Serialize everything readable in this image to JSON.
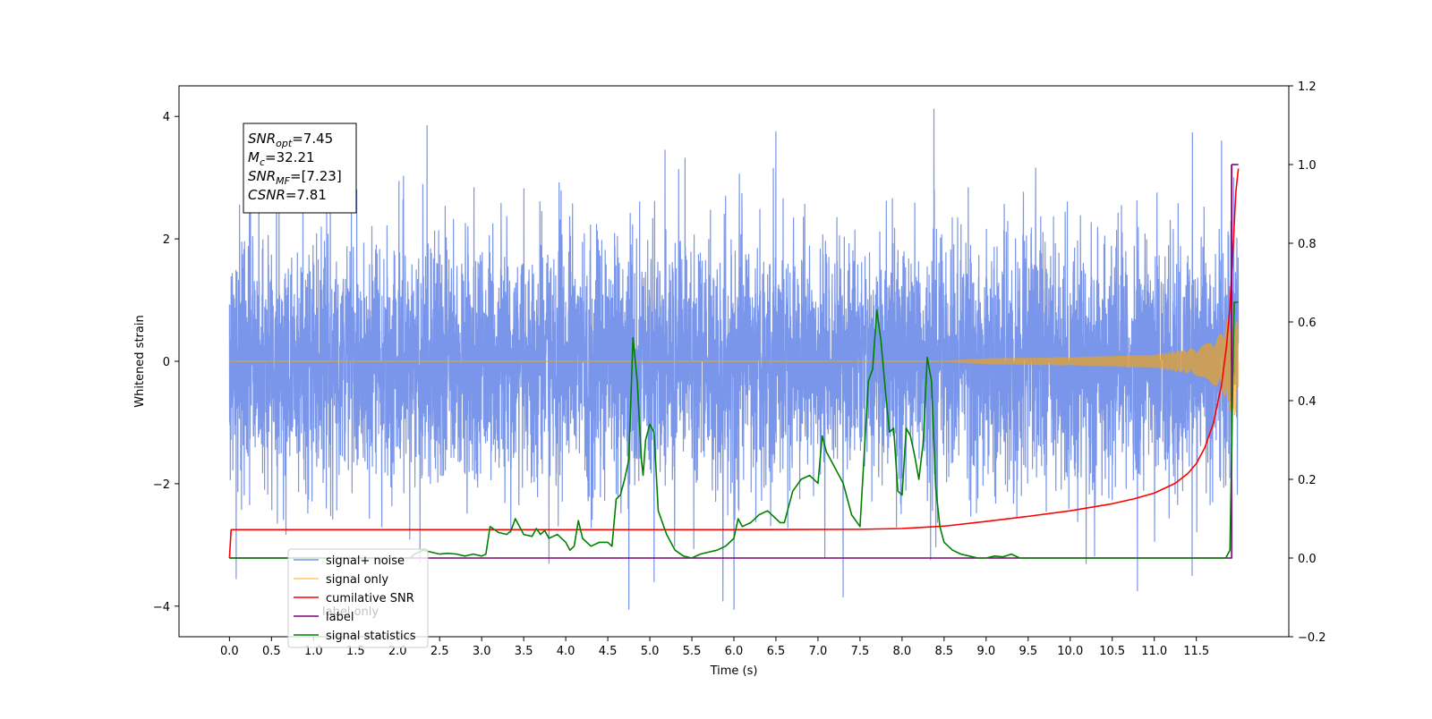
{
  "chart_data": {
    "type": "line",
    "title": "",
    "xlabel": "Time (s)",
    "ylabel": "Whitened strain",
    "y2label": "",
    "xlim": [
      -0.6,
      12.6
    ],
    "ylim": [
      -4.5,
      4.5
    ],
    "y2lim": [
      -0.2,
      1.2
    ],
    "x_ticks": [
      0.0,
      0.5,
      1.0,
      1.5,
      2.0,
      2.5,
      3.0,
      3.5,
      4.0,
      4.5,
      5.0,
      5.5,
      6.0,
      6.5,
      7.0,
      7.5,
      8.0,
      8.5,
      9.0,
      9.5,
      10.0,
      10.5,
      11.0,
      11.5
    ],
    "x_tick_labels": [
      "0.0",
      "0.5",
      "1.0",
      "1.5",
      "2.0",
      "2.5",
      "3.0",
      "3.5",
      "4.0",
      "4.5",
      "5.0",
      "5.5",
      "6.0",
      "6.5",
      "7.0",
      "7.5",
      "8.0",
      "8.5",
      "9.0",
      "9.5",
      "10.0",
      "10.5",
      "11.0",
      "11.5"
    ],
    "y_ticks": [
      -4,
      -2,
      0,
      2,
      4
    ],
    "y_tick_labels": [
      "−4",
      "−2",
      "0",
      "2",
      "4"
    ],
    "y2_ticks": [
      -0.2,
      0.0,
      0.2,
      0.4,
      0.6,
      0.8,
      1.0,
      1.2
    ],
    "y2_tick_labels": [
      "−0.2",
      "0.0",
      "0.2",
      "0.4",
      "0.6",
      "0.8",
      "1.0",
      "1.2"
    ],
    "grid": false,
    "legend_position": "bottom-left",
    "annotation": {
      "lines": [
        {
          "base": "SNR",
          "sub": "opt",
          "value": "=7.45"
        },
        {
          "base": "M",
          "sub": "c",
          "value": "=32.21"
        },
        {
          "base": "SNR",
          "sub": "MF",
          "value": "=[7.23]"
        },
        {
          "base": "CSNR",
          "sub": "",
          "value": "=7.81"
        }
      ]
    },
    "series": [
      {
        "name": "signal+ noise",
        "axis": "left",
        "color": "#4169e1",
        "opacity": 0.7,
        "x_start": 0.0,
        "x_end": 12.0,
        "amplitude_range": [
          -4.05,
          4.12
        ],
        "typical_std": 1.0,
        "spikes": [
          [
            0.02,
            1.38
          ],
          [
            0.08,
            -3.55
          ],
          [
            0.12,
            2.55
          ],
          [
            0.25,
            3.27
          ],
          [
            0.35,
            3.55
          ],
          [
            1.2,
            3.3
          ],
          [
            2.35,
            3.85
          ],
          [
            3.8,
            -3.3
          ],
          [
            4.75,
            -4.05
          ],
          [
            5.05,
            -3.6
          ],
          [
            5.18,
            3.45
          ],
          [
            6.5,
            3.75
          ],
          [
            7.3,
            -3.85
          ],
          [
            8.38,
            4.12
          ],
          [
            10.8,
            -3.75
          ],
          [
            11.45,
            -3.5
          ],
          [
            11.8,
            3.6
          ]
        ]
      },
      {
        "name": "signal only",
        "axis": "left",
        "color": "#ffa500",
        "opacity": 0.6,
        "x_start": 0.0,
        "x_end": 12.0,
        "envelope": [
          [
            0.0,
            0.0
          ],
          [
            8.5,
            0.0
          ],
          [
            9.0,
            0.04
          ],
          [
            10.0,
            0.06
          ],
          [
            11.0,
            0.1
          ],
          [
            11.5,
            0.22
          ],
          [
            11.8,
            0.45
          ],
          [
            11.95,
            0.95
          ],
          [
            12.0,
            0.5
          ]
        ]
      },
      {
        "name": "cumilative SNR",
        "axis": "right",
        "color": "#ff0000",
        "opacity": 1.0,
        "points": [
          [
            0.0,
            0.0
          ],
          [
            0.02,
            0.072
          ],
          [
            1.0,
            0.072
          ],
          [
            4.0,
            0.072
          ],
          [
            6.0,
            0.072
          ],
          [
            7.5,
            0.073
          ],
          [
            8.0,
            0.075
          ],
          [
            8.5,
            0.081
          ],
          [
            9.0,
            0.093
          ],
          [
            9.5,
            0.106
          ],
          [
            10.0,
            0.12
          ],
          [
            10.5,
            0.138
          ],
          [
            10.75,
            0.15
          ],
          [
            11.0,
            0.165
          ],
          [
            11.25,
            0.19
          ],
          [
            11.4,
            0.215
          ],
          [
            11.5,
            0.24
          ],
          [
            11.6,
            0.28
          ],
          [
            11.7,
            0.34
          ],
          [
            11.8,
            0.44
          ],
          [
            11.86,
            0.54
          ],
          [
            11.9,
            0.64
          ],
          [
            11.94,
            0.8
          ],
          [
            11.97,
            0.93
          ],
          [
            12.0,
            0.99
          ]
        ]
      },
      {
        "name": "cumilative SNR",
        "axis": "right",
        "color": "#ff0000",
        "opacity": 1.0,
        "points": [
          [
            11.92,
            1.0
          ],
          [
            11.92,
            0.5
          ]
        ]
      },
      {
        "name": "label",
        "axis": "right",
        "color": "#800080",
        "opacity": 1.0,
        "points": [
          [
            0.0,
            0.0
          ],
          [
            11.92,
            0.0
          ],
          [
            11.92,
            1.0
          ]
        ]
      },
      {
        "name": "label",
        "axis": "right",
        "color": "#800080",
        "opacity": 1.0,
        "points": [
          [
            11.92,
            1.0
          ],
          [
            12.0,
            1.0
          ]
        ]
      },
      {
        "name": "signal statistics",
        "axis": "right",
        "color": "#008000",
        "opacity": 1.0,
        "points": [
          [
            0.0,
            0.0
          ],
          [
            2.15,
            0.0
          ],
          [
            2.2,
            0.01
          ],
          [
            2.3,
            0.02
          ],
          [
            2.4,
            0.015
          ],
          [
            2.5,
            0.01
          ],
          [
            2.6,
            0.012
          ],
          [
            2.7,
            0.01
          ],
          [
            2.8,
            0.005
          ],
          [
            2.9,
            0.01
          ],
          [
            3.0,
            0.005
          ],
          [
            3.05,
            0.01
          ],
          [
            3.1,
            0.08
          ],
          [
            3.2,
            0.065
          ],
          [
            3.3,
            0.06
          ],
          [
            3.35,
            0.07
          ],
          [
            3.4,
            0.1
          ],
          [
            3.5,
            0.06
          ],
          [
            3.6,
            0.055
          ],
          [
            3.65,
            0.075
          ],
          [
            3.7,
            0.06
          ],
          [
            3.75,
            0.07
          ],
          [
            3.8,
            0.05
          ],
          [
            3.85,
            0.055
          ],
          [
            3.9,
            0.06
          ],
          [
            4.0,
            0.04
          ],
          [
            4.05,
            0.02
          ],
          [
            4.1,
            0.03
          ],
          [
            4.15,
            0.095
          ],
          [
            4.2,
            0.05
          ],
          [
            4.3,
            0.03
          ],
          [
            4.4,
            0.04
          ],
          [
            4.5,
            0.04
          ],
          [
            4.55,
            0.03
          ],
          [
            4.6,
            0.15
          ],
          [
            4.65,
            0.16
          ],
          [
            4.7,
            0.2
          ],
          [
            4.75,
            0.25
          ],
          [
            4.8,
            0.56
          ],
          [
            4.85,
            0.45
          ],
          [
            4.9,
            0.25
          ],
          [
            4.92,
            0.21
          ],
          [
            4.95,
            0.3
          ],
          [
            5.0,
            0.34
          ],
          [
            5.05,
            0.32
          ],
          [
            5.1,
            0.12
          ],
          [
            5.2,
            0.06
          ],
          [
            5.3,
            0.02
          ],
          [
            5.4,
            0.005
          ],
          [
            5.5,
            0.0
          ],
          [
            5.6,
            0.01
          ],
          [
            5.7,
            0.015
          ],
          [
            5.8,
            0.02
          ],
          [
            5.9,
            0.03
          ],
          [
            6.0,
            0.05
          ],
          [
            6.05,
            0.1
          ],
          [
            6.1,
            0.08
          ],
          [
            6.2,
            0.09
          ],
          [
            6.3,
            0.11
          ],
          [
            6.4,
            0.12
          ],
          [
            6.45,
            0.11
          ],
          [
            6.5,
            0.1
          ],
          [
            6.55,
            0.09
          ],
          [
            6.6,
            0.09
          ],
          [
            6.7,
            0.17
          ],
          [
            6.8,
            0.2
          ],
          [
            6.9,
            0.21
          ],
          [
            7.0,
            0.19
          ],
          [
            7.05,
            0.31
          ],
          [
            7.1,
            0.27
          ],
          [
            7.2,
            0.23
          ],
          [
            7.25,
            0.21
          ],
          [
            7.3,
            0.19
          ],
          [
            7.35,
            0.15
          ],
          [
            7.4,
            0.11
          ],
          [
            7.5,
            0.08
          ],
          [
            7.6,
            0.45
          ],
          [
            7.65,
            0.48
          ],
          [
            7.7,
            0.63
          ],
          [
            7.75,
            0.55
          ],
          [
            7.8,
            0.43
          ],
          [
            7.85,
            0.32
          ],
          [
            7.9,
            0.33
          ],
          [
            7.95,
            0.17
          ],
          [
            8.0,
            0.16
          ],
          [
            8.05,
            0.33
          ],
          [
            8.1,
            0.31
          ],
          [
            8.15,
            0.26
          ],
          [
            8.2,
            0.2
          ],
          [
            8.25,
            0.29
          ],
          [
            8.3,
            0.51
          ],
          [
            8.35,
            0.45
          ],
          [
            8.4,
            0.18
          ],
          [
            8.45,
            0.08
          ],
          [
            8.5,
            0.04
          ],
          [
            8.6,
            0.02
          ],
          [
            8.7,
            0.01
          ],
          [
            8.8,
            0.005
          ],
          [
            8.9,
            0.0
          ],
          [
            9.0,
            0.0
          ],
          [
            9.1,
            0.005
          ],
          [
            9.2,
            0.003
          ],
          [
            9.3,
            0.01
          ],
          [
            9.4,
            0.0
          ],
          [
            11.0,
            0.0
          ],
          [
            11.85,
            0.0
          ],
          [
            11.9,
            0.02
          ],
          [
            11.95,
            0.65
          ],
          [
            12.0,
            0.65
          ]
        ]
      }
    ]
  },
  "legend": {
    "items": [
      {
        "label": "signal+ noise",
        "color": "#4169e1",
        "opacity": 0.7
      },
      {
        "label": "signal only",
        "color": "#ffa500",
        "opacity": 0.6
      },
      {
        "label": "cumilative SNR",
        "color": "#ff0000",
        "opacity": 1.0
      },
      {
        "label": "label",
        "color": "#800080",
        "opacity": 1.0
      },
      {
        "label": "signal statistics",
        "color": "#008000",
        "opacity": 1.0
      }
    ]
  },
  "background_text": {
    "under_legend_fragment": "label only"
  }
}
